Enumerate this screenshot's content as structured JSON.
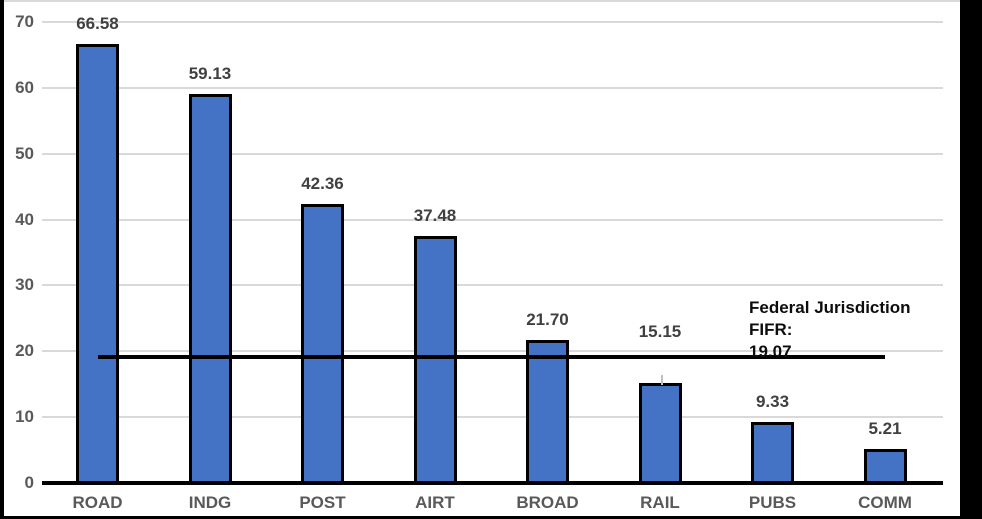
{
  "window": {
    "background": "#000000",
    "chart_background": "#ffffff",
    "top_edge_color": "#d9d9d9"
  },
  "chart_data": {
    "type": "bar",
    "title": "",
    "categories": [
      "ROAD",
      "INDG",
      "POST",
      "AIRT",
      "BROAD",
      "RAIL",
      "PUBS",
      "COMM"
    ],
    "values": [
      66.58,
      59.13,
      42.36,
      37.48,
      21.7,
      15.15,
      9.33,
      5.21
    ],
    "value_labels": [
      "66.58",
      "59.13",
      "42.36",
      "37.48",
      "21.70",
      "15.15",
      "9.33",
      "5.21"
    ],
    "xlabel": "",
    "ylabel": "",
    "ylim": [
      0,
      70
    ],
    "yticks": [
      0,
      10,
      20,
      30,
      40,
      50,
      60,
      70
    ],
    "ytick_labels": [
      "0",
      "10",
      "20",
      "30",
      "40",
      "50",
      "60",
      "70"
    ],
    "grid": true,
    "legend_position": "none",
    "colors": {
      "bar_fill": "#4472C4",
      "bar_border": "#000000",
      "gridline": "#D9D9D9",
      "axis_line": "#000000",
      "value_label": "#404040",
      "tick_label": "#595959",
      "leader_line": "#BFBFBF"
    },
    "callout": {
      "category": "RAIL",
      "note": "data label raised above bar with leader line"
    },
    "reference_line": {
      "value": 19.07,
      "color": "#000000",
      "label_line1": "Federal Jurisdiction FIFR:",
      "label_line2": "19.07",
      "label_color": "#0d0d0d",
      "span_categories": [
        "ROAD",
        "COMM"
      ]
    }
  }
}
